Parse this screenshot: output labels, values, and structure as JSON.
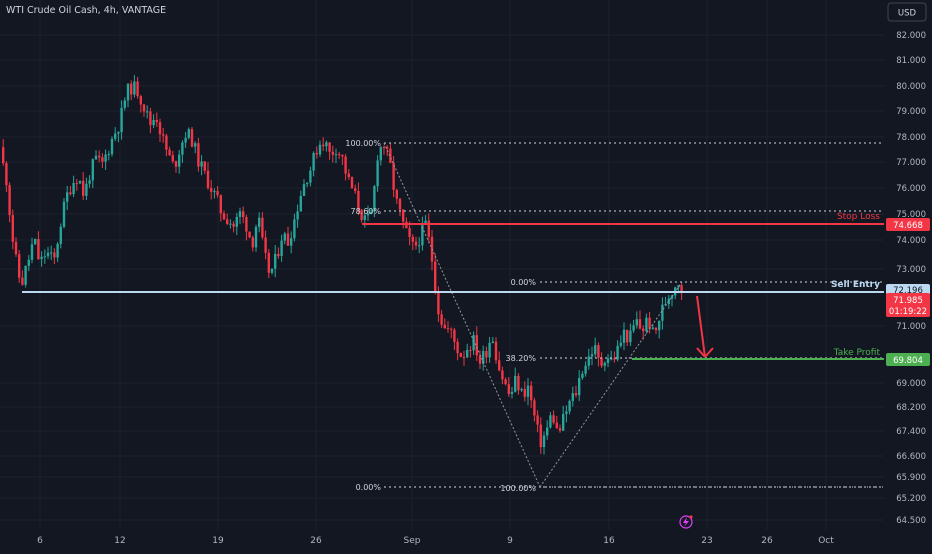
{
  "header": {
    "symbol_title": "WTI Crude Oil Cash, 4h, VANTAGE"
  },
  "currency_button": {
    "label": "USD"
  },
  "colors": {
    "background": "#131722",
    "up": "#26a69a",
    "down": "#f23645",
    "axis_text": "#b2b5be",
    "blue_line": "#bcd9f2",
    "stop_loss": "#f23645",
    "take_profit": "#4caf50",
    "fib_line": "#d1d4dc"
  },
  "chart_data": {
    "type": "candlestick",
    "title": "",
    "y_axis": {
      "ylim": [
        64.3,
        82.5
      ],
      "ticks": [
        "82.000",
        "81.000",
        "80.000",
        "79.000",
        "78.000",
        "77.000",
        "76.000",
        "75.000",
        "74.000",
        "73.000",
        "71.000",
        "69.000",
        "68.200",
        "67.400",
        "66.600",
        "65.900",
        "65.200",
        "64.500"
      ]
    },
    "x_axis": {
      "tick_labels": [
        "6",
        "12",
        "19",
        "26",
        "Sep",
        "9",
        "16",
        "23",
        "26",
        "Oct"
      ]
    },
    "price_markers": [
      {
        "label": "74.668",
        "kind": "stop-loss",
        "value": 74.668
      },
      {
        "label": "72.196",
        "kind": "sell-entry",
        "value": 72.196
      },
      {
        "label": "71.985",
        "kind": "last-price",
        "value": 71.985
      },
      {
        "label": "01:19:22",
        "kind": "countdown",
        "value": 71.985
      },
      {
        "label": "69.804",
        "kind": "take-profit",
        "value": 69.804
      }
    ],
    "levels": [
      {
        "label": "Stop Loss",
        "value": 74.668
      },
      {
        "label": "Sell Entry",
        "value": 72.196
      },
      {
        "label": "Take Profit",
        "value": 69.804
      }
    ],
    "fib_retracement_1": [
      {
        "label": "100.00%",
        "value": 77.8
      },
      {
        "label": "78.60%",
        "value": 75.1
      },
      {
        "label": "0.00%",
        "value": 65.55
      }
    ],
    "fib_retracement_2": [
      {
        "label": "0.00%",
        "value": 72.45
      },
      {
        "label": "38.20%",
        "value": 69.85
      },
      {
        "label": "100.00%",
        "value": 65.55
      }
    ],
    "price_path": [
      [
        0,
        77.6
      ],
      [
        8,
        76.5
      ],
      [
        14,
        74.2
      ],
      [
        20,
        72.6
      ],
      [
        24,
        72.3
      ],
      [
        30,
        73.1
      ],
      [
        36,
        74.0
      ],
      [
        42,
        73.0
      ],
      [
        48,
        73.5
      ],
      [
        56,
        73.1
      ],
      [
        62,
        74.5
      ],
      [
        68,
        75.6
      ],
      [
        74,
        76.2
      ],
      [
        80,
        76.5
      ],
      [
        86,
        75.7
      ],
      [
        92,
        76.6
      ],
      [
        98,
        77.1
      ],
      [
        104,
        76.9
      ],
      [
        110,
        77.5
      ],
      [
        116,
        78.1
      ],
      [
        122,
        78.6
      ],
      [
        128,
        79.7
      ],
      [
        134,
        80.0
      ],
      [
        140,
        79.8
      ],
      [
        146,
        79.2
      ],
      [
        152,
        78.5
      ],
      [
        158,
        78.9
      ],
      [
        164,
        78.0
      ],
      [
        170,
        77.3
      ],
      [
        176,
        76.8
      ],
      [
        182,
        77.6
      ],
      [
        188,
        78.2
      ],
      [
        194,
        77.9
      ],
      [
        200,
        77.1
      ],
      [
        206,
        76.6
      ],
      [
        212,
        76.1
      ],
      [
        218,
        75.6
      ],
      [
        224,
        75.0
      ],
      [
        230,
        74.8
      ],
      [
        236,
        74.5
      ],
      [
        242,
        75.0
      ],
      [
        248,
        74.6
      ],
      [
        254,
        73.8
      ],
      [
        260,
        74.9
      ],
      [
        266,
        73.4
      ],
      [
        272,
        72.6
      ],
      [
        278,
        73.2
      ],
      [
        284,
        74.2
      ],
      [
        290,
        73.9
      ],
      [
        296,
        74.7
      ],
      [
        302,
        75.7
      ],
      [
        308,
        76.4
      ],
      [
        314,
        76.9
      ],
      [
        320,
        77.7
      ],
      [
        326,
        77.9
      ],
      [
        332,
        77.3
      ],
      [
        338,
        77.6
      ],
      [
        344,
        77.2
      ],
      [
        350,
        76.3
      ],
      [
        356,
        75.8
      ],
      [
        362,
        75.1
      ],
      [
        368,
        74.6
      ],
      [
        374,
        75.0
      ],
      [
        380,
        77.5
      ],
      [
        386,
        77.7
      ],
      [
        392,
        76.9
      ],
      [
        398,
        75.5
      ],
      [
        404,
        74.7
      ],
      [
        410,
        74.0
      ],
      [
        416,
        73.6
      ],
      [
        422,
        74.1
      ],
      [
        428,
        74.6
      ],
      [
        434,
        73.2
      ],
      [
        440,
        71.3
      ],
      [
        446,
        70.5
      ],
      [
        452,
        70.4
      ],
      [
        458,
        69.8
      ],
      [
        464,
        69.4
      ],
      [
        470,
        69.8
      ],
      [
        476,
        70.0
      ],
      [
        482,
        69.2
      ],
      [
        488,
        69.6
      ],
      [
        494,
        70.3
      ],
      [
        500,
        69.1
      ],
      [
        506,
        68.4
      ],
      [
        512,
        67.8
      ],
      [
        518,
        68.5
      ],
      [
        524,
        67.9
      ],
      [
        530,
        68.2
      ],
      [
        536,
        67.1
      ],
      [
        542,
        66.0
      ],
      [
        548,
        66.4
      ],
      [
        554,
        67.2
      ],
      [
        560,
        66.3
      ],
      [
        566,
        67.0
      ],
      [
        572,
        67.6
      ],
      [
        578,
        68.0
      ],
      [
        584,
        68.9
      ],
      [
        590,
        69.3
      ],
      [
        596,
        69.8
      ],
      [
        602,
        69.0
      ],
      [
        608,
        69.5
      ],
      [
        614,
        69.2
      ],
      [
        620,
        69.7
      ],
      [
        626,
        70.3
      ],
      [
        632,
        70.1
      ],
      [
        638,
        70.8
      ],
      [
        644,
        70.4
      ],
      [
        650,
        70.9
      ],
      [
        656,
        70.1
      ],
      [
        662,
        71.0
      ],
      [
        668,
        71.6
      ],
      [
        674,
        72.0
      ],
      [
        680,
        72.4
      ],
      [
        685,
        72.0
      ]
    ],
    "annotations": [
      "Sell Entry",
      "Stop Loss",
      "Take Profit"
    ]
  }
}
